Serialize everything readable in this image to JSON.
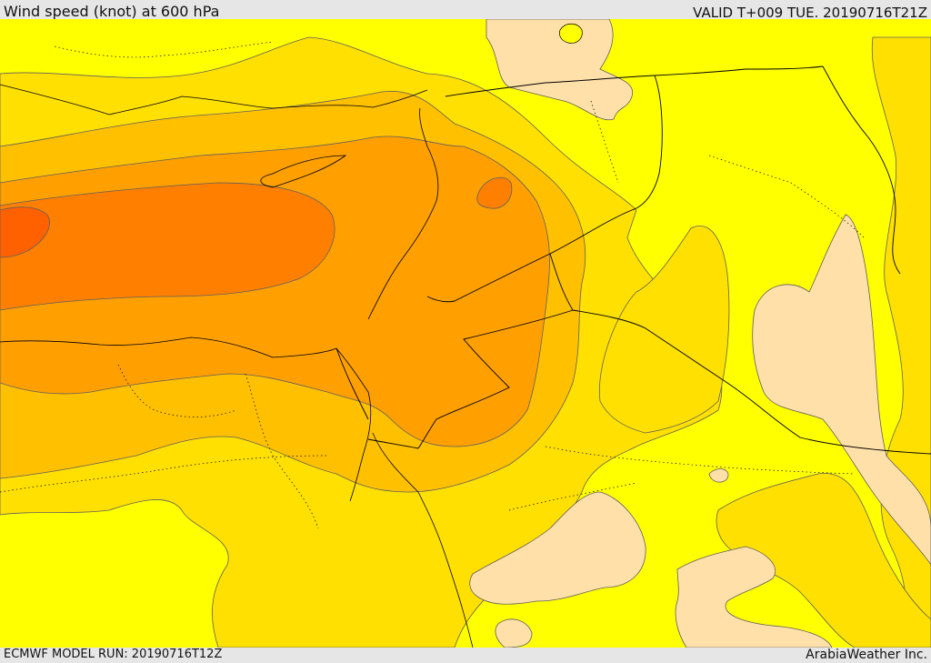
{
  "header": {
    "title": "Wind speed (knot) at 600 hPa",
    "valid_time": "VALID T+009 TUE. 20190716T21Z"
  },
  "footer": {
    "model_run": "ECMWF MODEL RUN: 20190716T12Z",
    "credit": "ArabiaWeather Inc."
  },
  "palette": {
    "yellow": "#ffff00",
    "gold": "#ffe000",
    "amber": "#ffc000",
    "orange": "#ffa000",
    "dark_orange": "#ff8000",
    "red_orange": "#ff6000",
    "peach": "#ffe0a8",
    "contour_line": "#606060",
    "border_line": "#000000",
    "water": "#ffffff"
  }
}
